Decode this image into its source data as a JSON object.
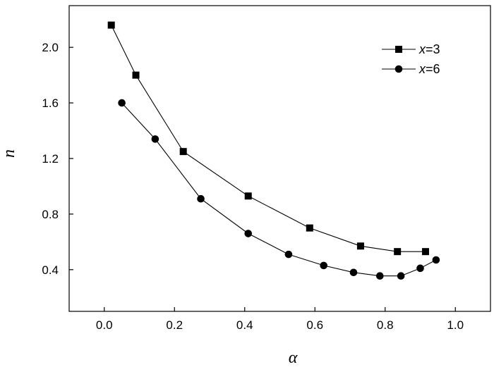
{
  "chart_data": {
    "type": "line",
    "xlabel": "α",
    "ylabel": "n",
    "xlim": [
      -0.1,
      1.1
    ],
    "ylim": [
      0.1,
      2.3
    ],
    "xticks": [
      0.0,
      0.2,
      0.4,
      0.6,
      0.8,
      1.0
    ],
    "xtick_labels": [
      "0.0",
      "0.2",
      "0.4",
      "0.6",
      "0.8",
      "1.0"
    ],
    "yticks": [
      0.4,
      0.8,
      1.2,
      1.6,
      2.0
    ],
    "ytick_labels": [
      "0.4",
      "0.8",
      "1.2",
      "1.6",
      "2.0"
    ],
    "grid": false,
    "legend_position": "top-right",
    "series": [
      {
        "name": "x=3",
        "name_var": "x",
        "name_rest": "=3",
        "marker": "square",
        "color": "#000000",
        "x": [
          0.02,
          0.09,
          0.225,
          0.41,
          0.585,
          0.73,
          0.835,
          0.915
        ],
        "y": [
          2.16,
          1.8,
          1.25,
          0.93,
          0.7,
          0.57,
          0.53,
          0.53
        ]
      },
      {
        "name": "x=6",
        "name_var": "x",
        "name_rest": "=6",
        "marker": "circle",
        "color": "#000000",
        "x": [
          0.05,
          0.145,
          0.275,
          0.41,
          0.525,
          0.625,
          0.71,
          0.785,
          0.845,
          0.9,
          0.945
        ],
        "y": [
          1.6,
          1.34,
          0.91,
          0.66,
          0.51,
          0.43,
          0.38,
          0.355,
          0.355,
          0.41,
          0.47
        ]
      }
    ]
  }
}
